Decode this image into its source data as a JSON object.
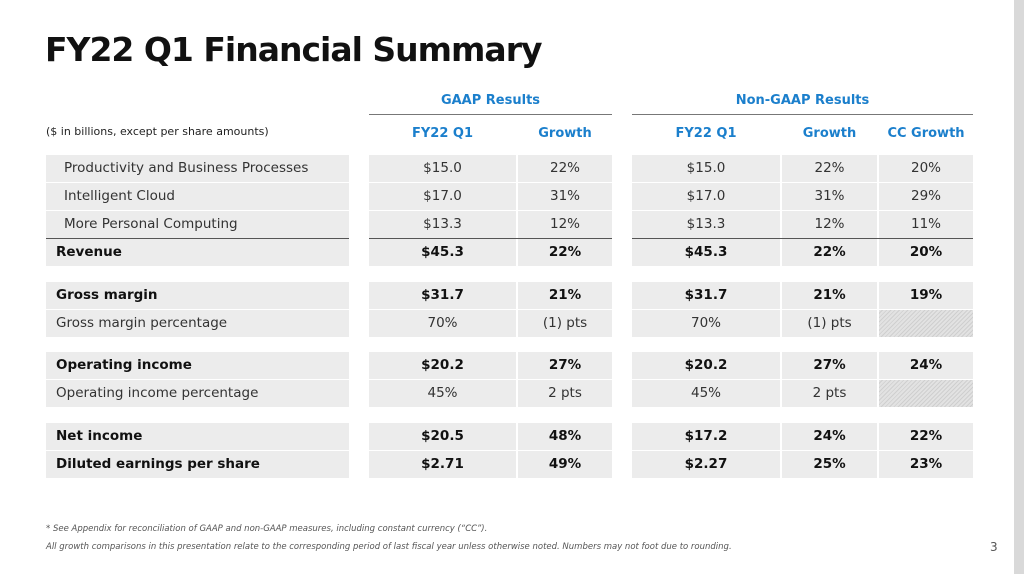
{
  "title": "FY22 Q1 Financial Summary",
  "units_note": "($ in billions, except per share amounts)",
  "gaap_header": "GAAP Results",
  "nongaap_header": "Non-GAAP Results",
  "columns": {
    "gaap_fy": "FY22 Q1",
    "gaap_growth": "Growth",
    "ng_fy": "FY22 Q1",
    "ng_growth": "Growth",
    "ng_cc": "CC Growth"
  },
  "rows": [
    {
      "label": "Productivity and Business Processes",
      "gaap_fy": "$15.0",
      "gaap_growth": "22%",
      "ng_fy": "$15.0",
      "ng_growth": "22%",
      "ng_cc": "20%"
    },
    {
      "label": "Intelligent Cloud",
      "gaap_fy": "$17.0",
      "gaap_growth": "31%",
      "ng_fy": "$17.0",
      "ng_growth": "31%",
      "ng_cc": "29%"
    },
    {
      "label": "More Personal Computing",
      "gaap_fy": "$13.3",
      "gaap_growth": "12%",
      "ng_fy": "$13.3",
      "ng_growth": "12%",
      "ng_cc": "11%"
    },
    {
      "label": "Revenue",
      "gaap_fy": "$45.3",
      "gaap_growth": "22%",
      "ng_fy": "$45.3",
      "ng_growth": "22%",
      "ng_cc": "20%"
    },
    {
      "label": "Gross margin",
      "gaap_fy": "$31.7",
      "gaap_growth": "21%",
      "ng_fy": "$31.7",
      "ng_growth": "21%",
      "ng_cc": "19%"
    },
    {
      "label": "Gross margin percentage",
      "gaap_fy": "70%",
      "gaap_growth": "(1) pts",
      "ng_fy": "70%",
      "ng_growth": "(1) pts",
      "ng_cc": ""
    },
    {
      "label": "Operating income",
      "gaap_fy": "$20.2",
      "gaap_growth": "27%",
      "ng_fy": "$20.2",
      "ng_growth": "27%",
      "ng_cc": "24%"
    },
    {
      "label": "Operating income percentage",
      "gaap_fy": "45%",
      "gaap_growth": "2 pts",
      "ng_fy": "45%",
      "ng_growth": "2 pts",
      "ng_cc": ""
    },
    {
      "label": "Net income",
      "gaap_fy": "$20.5",
      "gaap_growth": "48%",
      "ng_fy": "$17.2",
      "ng_growth": "24%",
      "ng_cc": "22%"
    },
    {
      "label": "Diluted earnings per share",
      "gaap_fy": "$2.71",
      "gaap_growth": "49%",
      "ng_fy": "$2.27",
      "ng_growth": "25%",
      "ng_cc": "23%"
    }
  ],
  "footnotes": [
    "* See Appendix for reconciliation of GAAP and non-GAAP measures, including constant currency (“CC”).",
    "All growth comparisons in this presentation relate to the corresponding period of last fiscal year unless otherwise noted. Numbers may not foot due to rounding."
  ],
  "page_number": "3"
}
